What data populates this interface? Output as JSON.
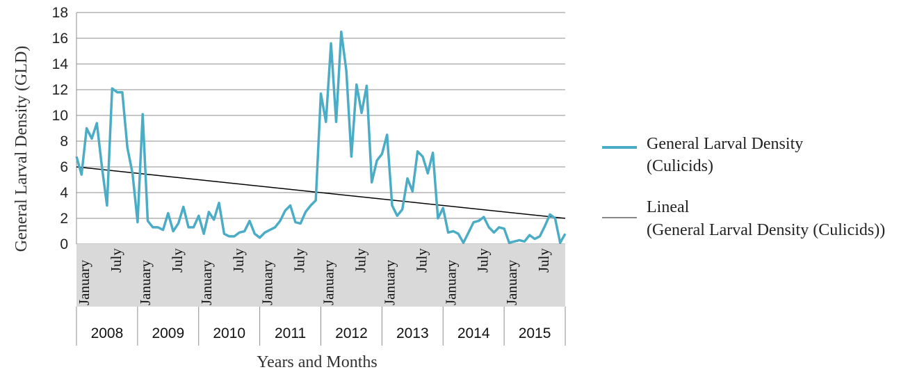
{
  "chart_data": {
    "type": "line",
    "title": "",
    "xlabel": "Years and Months",
    "ylabel": "General Larval Density (GLD)",
    "ylim": [
      0,
      18
    ],
    "yticks": [
      0,
      2,
      4,
      6,
      8,
      10,
      12,
      14,
      16,
      18
    ],
    "grid": true,
    "legend_position": "right",
    "years": [
      "2008",
      "2009",
      "2010",
      "2011",
      "2012",
      "2013",
      "2014",
      "2015"
    ],
    "month_labels": [
      "January",
      "July"
    ],
    "series": [
      {
        "name": "General Larval Density (Culicids)",
        "color": "#4bacc6",
        "values": [
          6.8,
          5.4,
          9.0,
          8.2,
          9.4,
          6.0,
          3.0,
          12.1,
          11.8,
          11.8,
          7.5,
          5.5,
          1.7,
          10.1,
          1.8,
          1.3,
          1.3,
          1.1,
          2.4,
          1.0,
          1.6,
          2.9,
          1.3,
          1.3,
          2.2,
          0.8,
          2.5,
          1.9,
          3.2,
          0.8,
          0.6,
          0.6,
          0.9,
          1.0,
          1.8,
          0.8,
          0.5,
          0.9,
          1.1,
          1.3,
          1.8,
          2.6,
          3.0,
          1.7,
          1.6,
          2.5,
          3.0,
          3.4,
          11.7,
          9.5,
          15.6,
          9.5,
          16.5,
          13.5,
          6.8,
          12.4,
          10.2,
          12.3,
          4.8,
          6.5,
          7.0,
          8.5,
          3.0,
          2.2,
          2.7,
          5.1,
          4.1,
          7.2,
          6.8,
          5.5,
          7.1,
          2.0,
          2.8,
          0.9,
          1.0,
          0.8,
          0.1,
          0.9,
          1.7,
          1.8,
          2.1,
          1.3,
          0.9,
          1.3,
          1.2,
          0.1,
          0.2,
          0.3,
          0.2,
          0.7,
          0.4,
          0.6,
          1.4,
          2.3,
          2.0,
          0.1,
          0.8
        ]
      },
      {
        "name": "Lineal (General Larval Density (Culicids))",
        "color": "#000000",
        "trend": [
          6.0,
          2.0
        ]
      }
    ]
  }
}
